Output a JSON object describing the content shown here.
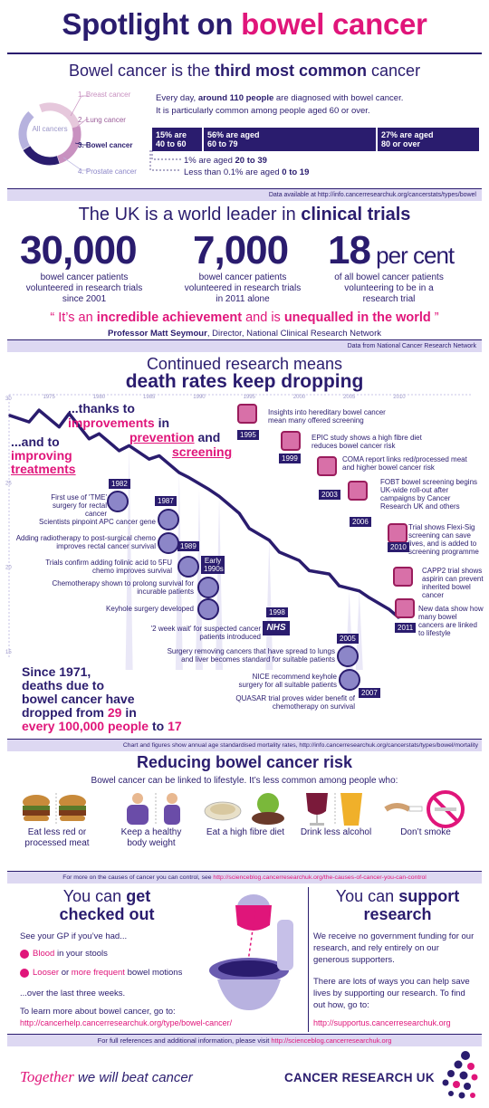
{
  "header": {
    "title_part1": "Spotlight on ",
    "title_part2": "bowel cancer"
  },
  "section1": {
    "headline_pre": "Bowel cancer is the ",
    "headline_bold": "third most common",
    "headline_post": " cancer",
    "donut_center": "All cancers",
    "rank_labels": [
      "1. Breast cancer",
      "2. Lung cancer",
      "3. Bowel cancer",
      "4. Prostate cancer"
    ],
    "stat_line1_pre": "Every day, ",
    "stat_line1_bold": "around 110 people",
    "stat_line1_post": " are diagnosed with bowel cancer.",
    "stat_line2": "It is particularly common among people aged 60 or over.",
    "age_boxes": [
      {
        "pct": "15% are",
        "range": "40 to 60"
      },
      {
        "pct": "56% are aged",
        "range": "60 to 79"
      },
      {
        "pct": "27% are aged",
        "range": "80 or over"
      }
    ],
    "small_ages": [
      {
        "pre": "1% are aged ",
        "bold": "20 to 39"
      },
      {
        "pre": "Less than 0.1% are aged ",
        "bold": "0 to 19"
      }
    ],
    "source": "Data available at http://info.cancerresearchuk.org/cancerstats/types/bowel"
  },
  "section2": {
    "headline_pre": "The UK is a world leader in ",
    "headline_bold": "clinical trials",
    "stats": [
      {
        "number": "30,000",
        "suffix": "",
        "desc": "bowel cancer patients volunteered in research trials since 2001"
      },
      {
        "number": "7,000",
        "suffix": "",
        "desc": "bowel cancer patients volunteered in research trials in 2011 alone"
      },
      {
        "number": "18",
        "suffix": " per cent",
        "desc": "of all bowel cancer patients volunteering to be in a research trial"
      }
    ],
    "quote_open": "“ It’s an ",
    "quote_bold1": "incredible achievement",
    "quote_mid": " and is ",
    "quote_bold2": "unequalled in the world",
    "quote_close": " ”",
    "attribution_bold": "Professor Matt Seymour",
    "attribution_rest": ", Director, National Clinical Research Network",
    "source": "Data from National Cancer Research Network"
  },
  "section3": {
    "headline1": "Continued research means",
    "headline2": "death rates keep dropping",
    "thanks_pre": "...thanks to",
    "thanks_bold": "improvements",
    "thanks_in": " in",
    "prevention": "prevention",
    "and": " and",
    "screening": "screening",
    "and_to": "...and to",
    "improving": "improving",
    "treatments": "treatments",
    "x_ticks": [
      "1975",
      "1980",
      "1985",
      "1990",
      "1995",
      "2000",
      "2005",
      "2010"
    ],
    "y_ticks": [
      "30",
      "25",
      "20",
      "15"
    ],
    "left_events": [
      {
        "year": "1982",
        "text": "First use of 'TME' surgery for rectal cancer"
      },
      {
        "year": "1987",
        "text": "Scientists pinpoint APC cancer gene"
      },
      {
        "year": "1989",
        "text": "Adding radiotherapy to post-surgical chemo improves rectal cancer survival"
      },
      {
        "year": "Early 1990s",
        "text": "Trials confirm adding folinic acid to 5FU chemo improves survival"
      },
      {
        "year": "",
        "text": "Chemotherapy shown to prolong survival for incurable patients"
      },
      {
        "year": "",
        "text": "Keyhole surgery developed"
      },
      {
        "year": "1998",
        "text": "'2 week wait' for suspected cancer patients introduced"
      },
      {
        "year": "2005",
        "text": "Surgery removing cancers that have spread to lungs and liver becomes standard for suitable patients"
      },
      {
        "year": "",
        "text": "NICE recommend keyhole surgery for all suitable patients"
      },
      {
        "year": "2007",
        "text": "QUASAR trial proves wider benefit of chemotherapy on survival"
      }
    ],
    "right_events": [
      {
        "year": "1995",
        "text": "Insights into hereditary bowel cancer mean many offered screening"
      },
      {
        "year": "1999",
        "text": "EPIC study shows a high fibre diet reduces bowel cancer risk"
      },
      {
        "year": "2003",
        "text": "COMA report links red/processed meat and higher bowel cancer risk"
      },
      {
        "year": "2006",
        "text": "FOBT bowel screening begins UK-wide roll-out after campaigns by Cancer Research UK and others"
      },
      {
        "year": "2010",
        "text": "Trial shows Flexi-Sig screening can save lives, and is added to screening programme"
      },
      {
        "year": "",
        "text": "CAPP2 trial shows aspirin can prevent inherited bowel cancer"
      },
      {
        "year": "2011",
        "text": "New data show how many bowel cancers are linked to lifestyle"
      }
    ],
    "nhs_label": "NHS",
    "since_l1": "Since 1971,",
    "since_l2": "deaths due to",
    "since_l3": "bowel cancer have",
    "since_l4_pre": "dropped from ",
    "since_l4_bold": "29",
    "since_l4_post": " in",
    "since_l5": "every 100,000 people",
    "since_l5_post": " to ",
    "since_l5_end": "17",
    "source": "Chart and figures show annual age standardised mortality rates, http://info.cancerresearchuk.org/cancerstats/types/bowel/mortality"
  },
  "chart_data": {
    "type": "line",
    "title": "",
    "xlabel": "",
    "ylabel": "",
    "x": [
      1971,
      1973,
      1974,
      1976,
      1977,
      1979,
      1980,
      1982,
      1983,
      1985,
      1986,
      1988,
      1989,
      1991,
      1992,
      1994,
      1995,
      1997,
      1998,
      2000,
      2001,
      2003,
      2004,
      2006,
      2007,
      2009,
      2010
    ],
    "y": [
      29,
      28.6,
      29.3,
      28.3,
      29.1,
      27.6,
      27.9,
      26.9,
      27.2,
      26.4,
      26.6,
      25.6,
      25.3,
      24.6,
      24.2,
      23.2,
      22.3,
      21.6,
      20.9,
      20.4,
      19.8,
      19.6,
      18.9,
      18.6,
      18.2,
      17.5,
      17
    ],
    "xlim": [
      1971,
      2011
    ],
    "ylim": [
      15,
      30
    ],
    "grid": false
  },
  "section4": {
    "headline": "Reducing bowel cancer risk",
    "subhead": "Bowel cancer can be linked to lifestyle.  It’s less common among people who:",
    "items": [
      "Eat less red or processed meat",
      "Keep a healthy body weight",
      "Eat a high fibre diet",
      "Drink less alcohol",
      "Don’t smoke"
    ],
    "source_pre": "For more on the causes of cancer you can control, see ",
    "source_link": "http://scienceblog.cancerresearchuk.org/the-causes-of-cancer-you-can-control"
  },
  "section5": {
    "left_title_pre": "You can ",
    "left_title_bold": "get",
    "left_title_l2": "checked out",
    "see_gp": "See your GP if you’ve had...",
    "symptom1_bold": "Blood",
    "symptom1_rest": " in your stools",
    "symptom2_bold": "Looser",
    "symptom2_mid": " or ",
    "symptom2_bold2": "more frequent",
    "symptom2_rest": " bowel motions",
    "over_weeks": "...over the last three weeks.",
    "learn_more": "To learn more about bowel cancer, go to:",
    "learn_link": "http://cancerhelp.cancerresearchuk.org/type/bowel-cancer/",
    "right_title_pre": "You can ",
    "right_title_bold": "support",
    "right_title_l2": "research",
    "funding_text": "We receive no government funding for our research, and rely entirely on our generous supporters.",
    "ways_text": "There are lots of ways you can help save lives by supporting our research. To find out how, go to:",
    "support_link": "http://supportus.cancerresearchuk.org",
    "footer_pre": "For full references and additional information, please visit ",
    "footer_link": "http://scienceblog.cancerresearchuk.org"
  },
  "footer": {
    "tagline_italic": "Together",
    "tagline_rest": " we will beat cancer",
    "logo_text": "CANCER RESEARCH UK"
  },
  "colors": {
    "navy": "#2a1c6e",
    "pink": "#e0157a",
    "lavender": "#ddd8f2"
  }
}
